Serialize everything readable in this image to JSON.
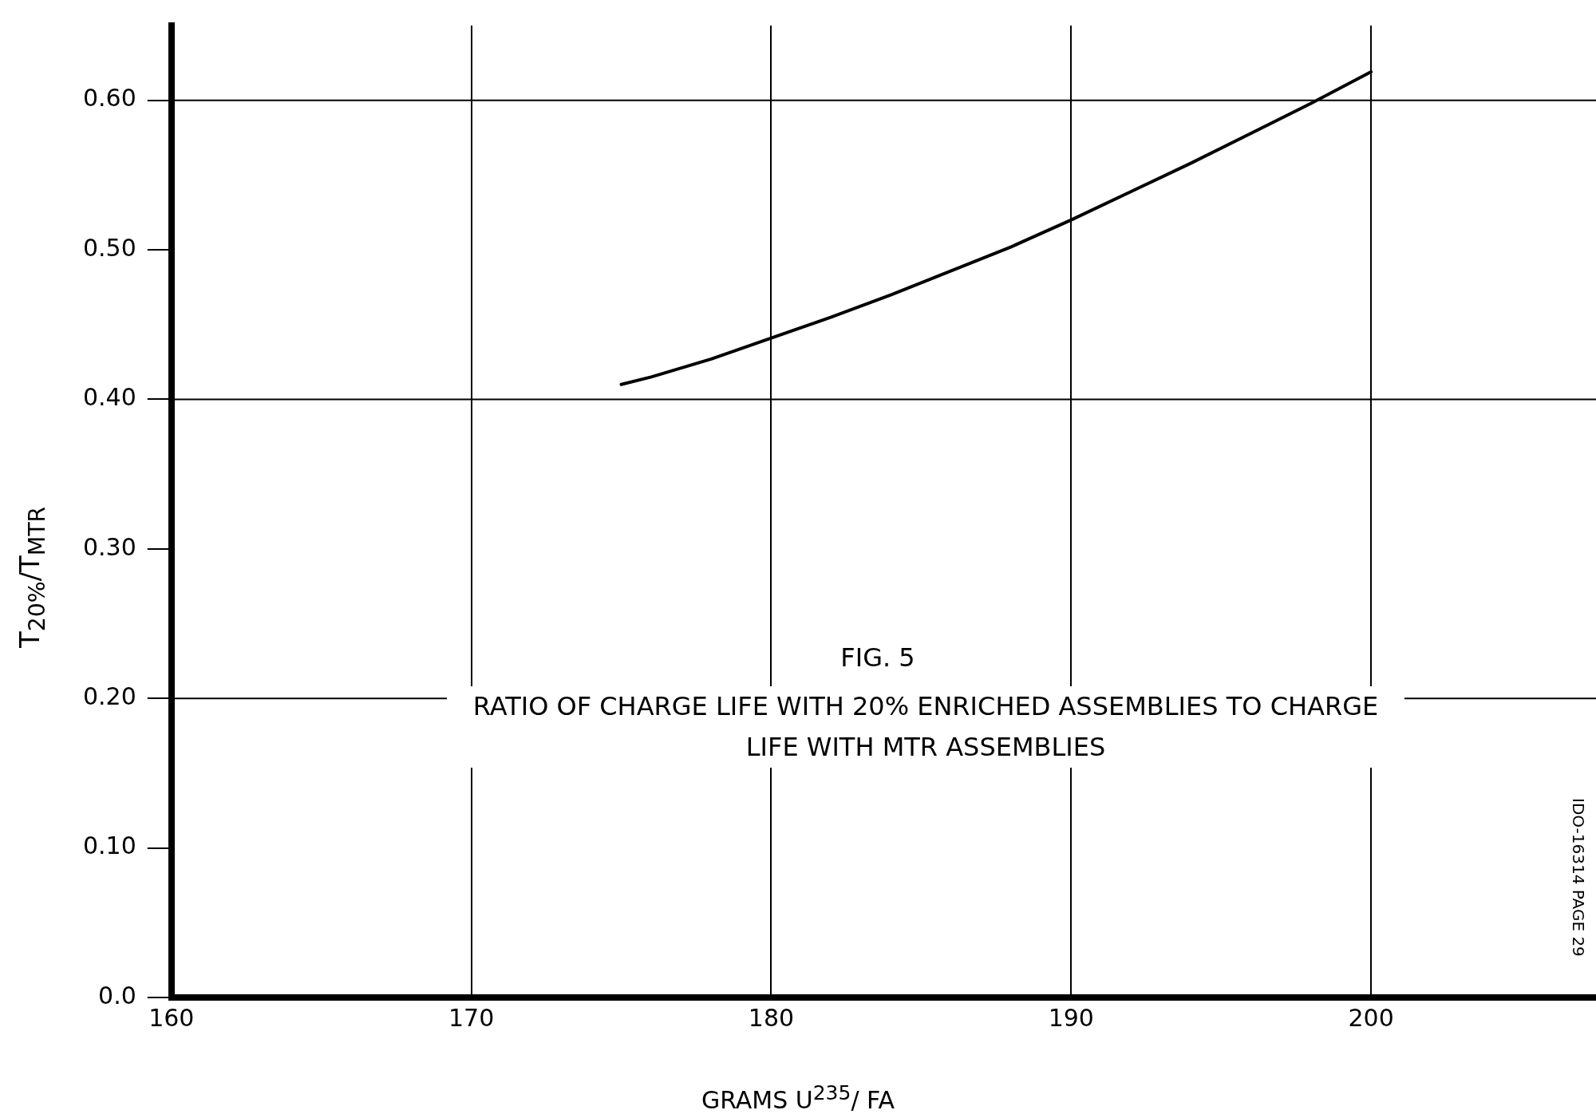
{
  "chart_data": {
    "type": "line",
    "title": "FIG. 5",
    "subtitle": "RATIO OF CHARGE LIFE WITH 20% ENRICHED ASSEMBLIES TO CHARGE LIFE WITH MTR ASSEMBLIES",
    "xlabel": "GRAMS U$^{235}$/ FA",
    "ylabel": "T$_{20%}$/T$_{MTR}$",
    "annotations": [
      "IDO-16314 PAGE 29"
    ],
    "x": [
      175,
      176,
      178,
      180,
      182,
      184,
      186,
      188,
      190,
      192,
      194,
      196,
      198,
      200
    ],
    "series": [
      {
        "color": "#000000",
        "values": [
          0.41,
          0.415,
          0.427,
          0.441,
          0.455,
          0.47,
          0.486,
          0.502,
          0.52,
          0.539,
          0.558,
          0.578,
          0.598,
          0.619
        ]
      }
    ],
    "xlim": [
      160,
      207.5
    ],
    "xticks": [
      160,
      170,
      180,
      190,
      200
    ],
    "ylim": [
      0,
      0.65
    ],
    "yticks": [
      {
        "value": 0,
        "label": "0.0"
      },
      {
        "value": 0.1,
        "label": "0.10"
      },
      {
        "value": 0.2,
        "label": "0.20"
      },
      {
        "value": 0.3,
        "label": "0.30"
      },
      {
        "value": 0.4,
        "label": "0.40"
      },
      {
        "value": 0.5,
        "label": "0.50"
      },
      {
        "value": 0.6,
        "label": "0.60"
      }
    ],
    "grid": "x",
    "legend": false,
    "marker": "none",
    "line_style": "solid",
    "ref_lines": [
      {
        "axis": "y",
        "value": 0.2,
        "color": "#000000"
      },
      {
        "axis": "y",
        "value": 0.4,
        "color": "#000000"
      },
      {
        "axis": "y",
        "value": 0.6,
        "color": "#000000"
      }
    ]
  }
}
